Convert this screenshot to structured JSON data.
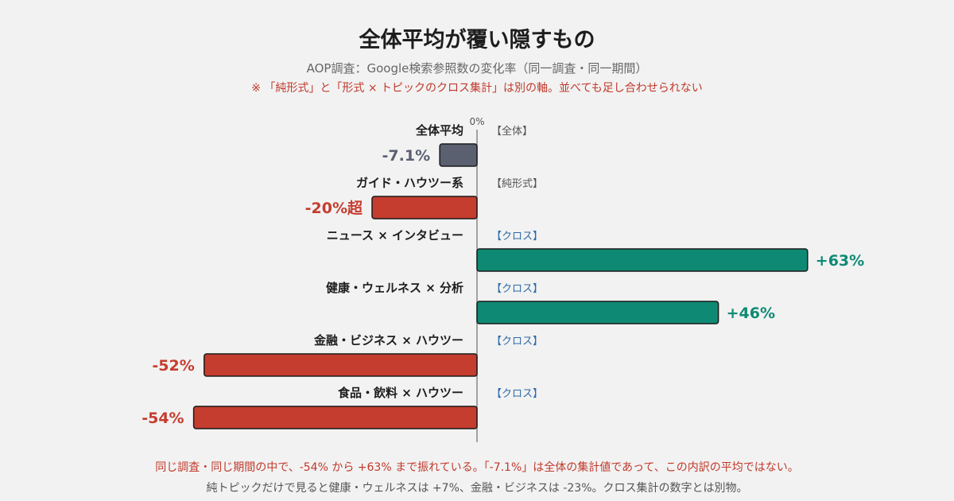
{
  "header": {
    "title": "全体平均が覆い隠すもの",
    "subtitle": "AOP調査：Google検索参照数の変化率（同一調査・同一期間）",
    "note": "※ 「純形式」と「形式 × トピックのクロス集計」は別の軸。並べても足し合わせられない"
  },
  "colors": {
    "negative": "#c53d2e",
    "positive": "#0e8a74",
    "overall": "#5a6070",
    "tag_gray": "#555555",
    "tag_blue": "#2e6aa8",
    "axis": "#888888"
  },
  "chart_data": {
    "type": "bar",
    "orientation": "horizontal",
    "zero_label": "0%",
    "xlim": [
      -60,
      70
    ],
    "categories": [
      "全体平均",
      "ガイド・ハウツー系",
      "ニュース × インタビュー",
      "健康・ウェルネス × 分析",
      "金融・ビジネス × ハウツー",
      "食品・飲料 × ハウツー"
    ],
    "values": [
      -7.1,
      -20,
      63,
      46,
      -52,
      -54
    ],
    "value_labels": [
      "-7.1%",
      "-20%超",
      "+63%",
      "+46%",
      "-52%",
      "-54%"
    ],
    "tags": [
      "【全体】",
      "【純形式】",
      "【クロス】",
      "【クロス】",
      "【クロス】",
      "【クロス】"
    ],
    "tag_kinds": [
      "gray",
      "gray",
      "blue",
      "blue",
      "blue",
      "blue"
    ],
    "bar_kinds": [
      "overall",
      "negative",
      "positive",
      "positive",
      "negative",
      "negative"
    ],
    "grid": false,
    "legend": "none"
  },
  "footer": {
    "line1": "同じ調査・同じ期間の中で、-54% から +63% まで振れている。「-7.1%」は全体の集計値であって、この内訳の平均ではない。",
    "line2": "純トピックだけで見ると健康・ウェルネスは +7%、金融・ビジネスは -23%。クロス集計の数字とは別物。"
  }
}
